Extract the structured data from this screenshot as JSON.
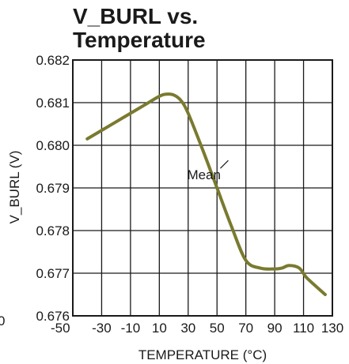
{
  "chart_data": {
    "type": "line",
    "title_line1": "V_BURL vs.",
    "title_line2": "Temperature",
    "xlabel": "TEMPERATURE (°C)",
    "ylabel": "V_BURL (V)",
    "xlim": [
      -50,
      130
    ],
    "ylim": [
      0.676,
      0.682
    ],
    "x_ticks": [
      "-50",
      "-30",
      "-10",
      "10",
      "30",
      "50",
      "70",
      "90",
      "110",
      "130"
    ],
    "y_ticks": [
      "0.682",
      "0.681",
      "0.680",
      "0.679",
      "0.678",
      "0.677",
      "0.676"
    ],
    "grid": true,
    "line_color": "#7a7a30",
    "stray_label": "0",
    "series": [
      {
        "name": "Mean",
        "x": [
          -40,
          -30,
          -20,
          -10,
          0,
          10,
          15,
          20,
          25,
          30,
          40,
          50,
          60,
          70,
          80,
          90,
          95,
          100,
          107,
          112,
          120,
          125
        ],
        "y": [
          0.68015,
          0.68035,
          0.68055,
          0.68075,
          0.68095,
          0.68115,
          0.6812,
          0.68118,
          0.68105,
          0.68075,
          0.6799,
          0.679,
          0.6781,
          0.6773,
          0.67712,
          0.6771,
          0.67712,
          0.67718,
          0.67712,
          0.6769,
          0.67665,
          0.6765
        ]
      }
    ],
    "annotation": {
      "text": "Mean",
      "x": 60,
      "y": 0.6797
    }
  }
}
